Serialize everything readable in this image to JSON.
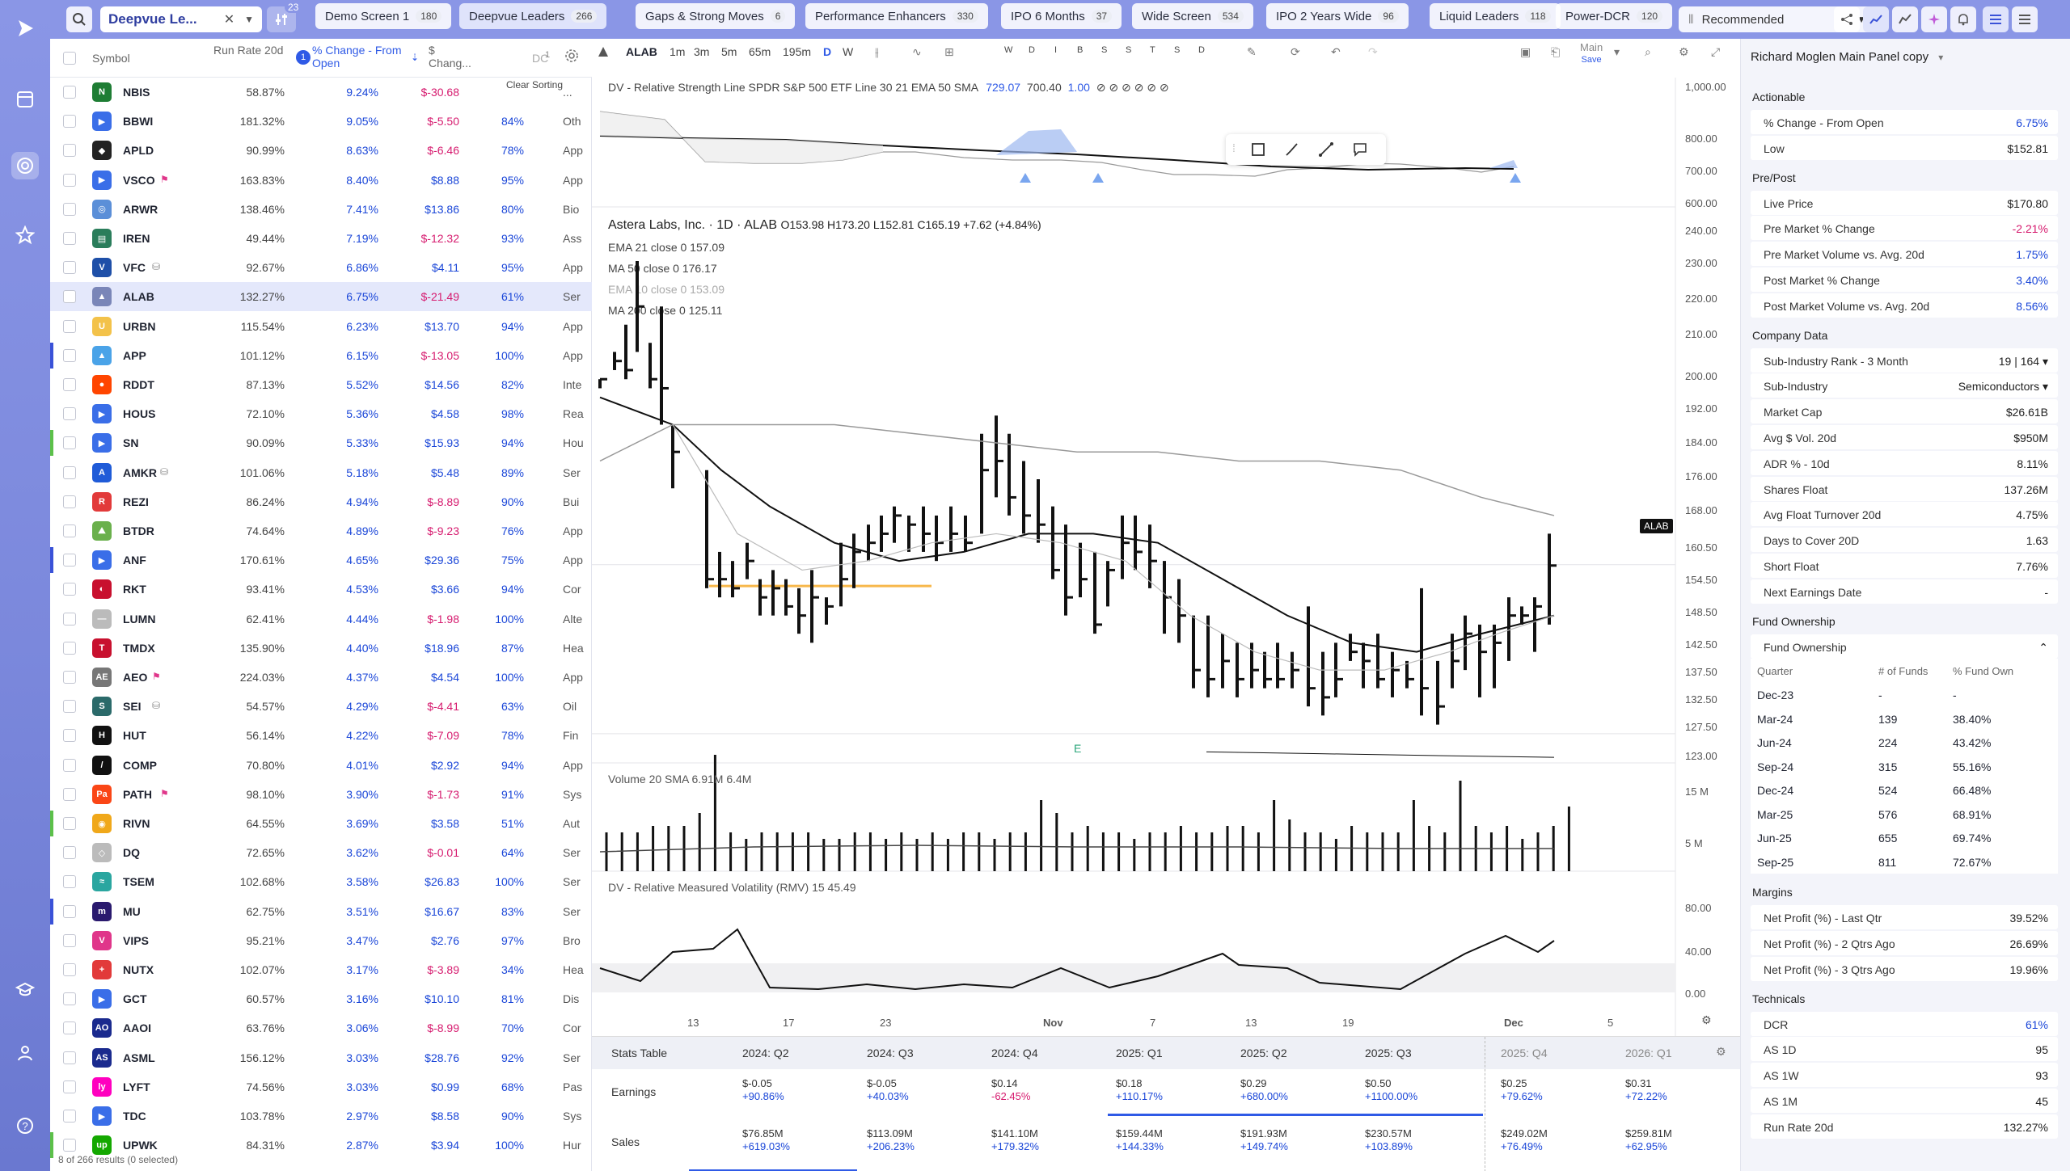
{
  "colors": {
    "accent": "#8a96e6",
    "positive": "#1a46d8",
    "negative": "#d61a6e",
    "selected_row": "#e4e8fb"
  },
  "topbar": {
    "screen_name": "Deepvue Le...",
    "filter_count": "23",
    "tabs": [
      {
        "label": "Demo Screen 1",
        "count": "180"
      },
      {
        "label": "Deepvue Leaders",
        "count": "266"
      },
      {
        "label": "Gaps & Strong Moves",
        "count": "6"
      },
      {
        "label": "Performance Enhancers",
        "count": "330"
      },
      {
        "label": "IPO 6 Months",
        "count": "37"
      },
      {
        "label": "Wide Screen",
        "count": "534"
      },
      {
        "label": "IPO 2 Years Wide",
        "count": "96"
      },
      {
        "label": "Liquid Leaders",
        "count": "118"
      },
      {
        "label": "Power-DCR",
        "count": "120"
      }
    ],
    "layout_select": "Recommended"
  },
  "watchlist": {
    "headers": {
      "symbol": "Symbol",
      "run_rate": "Run Rate 20d",
      "sort_badge": "1",
      "pct_change": "% Change - From Open",
      "dollar_change": "$ Chang...",
      "dcr": "DC",
      "dcr_badge": "1",
      "clear_sorting": "Clear Sorting"
    },
    "footer": "8 of 266 results (0 selected)",
    "rows": [
      {
        "sym": "NBIS",
        "rr": "58.87%",
        "pct": "9.24%",
        "chg": "$-30.68",
        "dcr": "",
        "ind": "...",
        "logo": "N",
        "logo_color": "#1e7d34",
        "marker": ""
      },
      {
        "sym": "BBWI",
        "rr": "181.32%",
        "pct": "9.05%",
        "chg": "$-5.50",
        "dcr": "84%",
        "ind": "Oth",
        "logo": "▶",
        "logo_color": "#3a6ee8",
        "marker": ""
      },
      {
        "sym": "APLD",
        "rr": "90.99%",
        "pct": "8.63%",
        "chg": "$-6.46",
        "dcr": "78%",
        "ind": "App",
        "logo": "◆",
        "logo_color": "#222",
        "marker": ""
      },
      {
        "sym": "VSCO",
        "rr": "163.83%",
        "pct": "8.40%",
        "chg": "$8.88",
        "dcr": "95%",
        "ind": "App",
        "logo": "▶",
        "logo_color": "#3a6ee8",
        "marker": "",
        "flag": "⚑"
      },
      {
        "sym": "ARWR",
        "rr": "138.46%",
        "pct": "7.41%",
        "chg": "$13.86",
        "dcr": "80%",
        "ind": "Bio",
        "logo": "◎",
        "logo_color": "#5b8fd8",
        "marker": ""
      },
      {
        "sym": "IREN",
        "rr": "49.44%",
        "pct": "7.19%",
        "chg": "$-12.32",
        "dcr": "93%",
        "ind": "Ass",
        "logo": "▤",
        "logo_color": "#2a7d5b",
        "marker": ""
      },
      {
        "sym": "VFC",
        "rr": "92.67%",
        "pct": "6.86%",
        "chg": "$4.11",
        "dcr": "95%",
        "ind": "App",
        "logo": "V",
        "logo_color": "#1e4fa8",
        "marker": "",
        "flag": "⛁"
      },
      {
        "sym": "ALAB",
        "rr": "132.27%",
        "pct": "6.75%",
        "chg": "$-21.49",
        "dcr": "61%",
        "ind": "Ser",
        "logo": "▲",
        "logo_color": "#7a86b8",
        "marker": "",
        "selected": true
      },
      {
        "sym": "URBN",
        "rr": "115.54%",
        "pct": "6.23%",
        "chg": "$13.70",
        "dcr": "94%",
        "ind": "App",
        "logo": "U",
        "logo_color": "#f3c24a",
        "marker": ""
      },
      {
        "sym": "APP",
        "rr": "101.12%",
        "pct": "6.15%",
        "chg": "$-13.05",
        "dcr": "100%",
        "ind": "App",
        "logo": "▲",
        "logo_color": "#4aa3e8",
        "marker": "#3a52d8"
      },
      {
        "sym": "RDDT",
        "rr": "87.13%",
        "pct": "5.52%",
        "chg": "$14.56",
        "dcr": "82%",
        "ind": "Inte",
        "logo": "●",
        "logo_color": "#ff4500",
        "marker": ""
      },
      {
        "sym": "HOUS",
        "rr": "72.10%",
        "pct": "5.36%",
        "chg": "$4.58",
        "dcr": "98%",
        "ind": "Rea",
        "logo": "▶",
        "logo_color": "#3a6ee8",
        "marker": ""
      },
      {
        "sym": "SN",
        "rr": "90.09%",
        "pct": "5.33%",
        "chg": "$15.93",
        "dcr": "94%",
        "ind": "Hou",
        "logo": "▶",
        "logo_color": "#3a6ee8",
        "marker": "#5cc04a"
      },
      {
        "sym": "AMKR",
        "rr": "101.06%",
        "pct": "5.18%",
        "chg": "$5.48",
        "dcr": "89%",
        "ind": "Ser",
        "logo": "A",
        "logo_color": "#1f5bd8",
        "marker": "",
        "flag": "⛁"
      },
      {
        "sym": "REZI",
        "rr": "86.24%",
        "pct": "4.94%",
        "chg": "$-8.89",
        "dcr": "90%",
        "ind": "Bui",
        "logo": "R",
        "logo_color": "#e23a3a",
        "marker": ""
      },
      {
        "sym": "BTDR",
        "rr": "74.64%",
        "pct": "4.89%",
        "chg": "$-9.23",
        "dcr": "76%",
        "ind": "App",
        "logo": "⛰",
        "logo_color": "#6ab04c",
        "marker": ""
      },
      {
        "sym": "ANF",
        "rr": "170.61%",
        "pct": "4.65%",
        "chg": "$29.36",
        "dcr": "75%",
        "ind": "App",
        "logo": "▶",
        "logo_color": "#3a6ee8",
        "marker": "#3a52d8"
      },
      {
        "sym": "RKT",
        "rr": "93.41%",
        "pct": "4.53%",
        "chg": "$3.66",
        "dcr": "94%",
        "ind": "Cor",
        "logo": "◐",
        "logo_color": "#c8102e",
        "marker": ""
      },
      {
        "sym": "LUMN",
        "rr": "62.41%",
        "pct": "4.44%",
        "chg": "$-1.98",
        "dcr": "100%",
        "ind": "Alte",
        "logo": "—",
        "logo_color": "#bbbbbb",
        "marker": ""
      },
      {
        "sym": "TMDX",
        "rr": "135.90%",
        "pct": "4.40%",
        "chg": "$18.96",
        "dcr": "87%",
        "ind": "Hea",
        "logo": "T",
        "logo_color": "#c8102e",
        "marker": ""
      },
      {
        "sym": "AEO",
        "rr": "224.03%",
        "pct": "4.37%",
        "chg": "$4.54",
        "dcr": "100%",
        "ind": "App",
        "logo": "AE",
        "logo_color": "#777777",
        "marker": "",
        "flag": "⚑"
      },
      {
        "sym": "SEI",
        "rr": "54.57%",
        "pct": "4.29%",
        "chg": "$-4.41",
        "dcr": "63%",
        "ind": "Oil",
        "logo": "S",
        "logo_color": "#2b6a6a",
        "marker": "",
        "flag": "⛁"
      },
      {
        "sym": "HUT",
        "rr": "56.14%",
        "pct": "4.22%",
        "chg": "$-7.09",
        "dcr": "78%",
        "ind": "Fin",
        "logo": "H",
        "logo_color": "#111111",
        "marker": ""
      },
      {
        "sym": "COMP",
        "rr": "70.80%",
        "pct": "4.01%",
        "chg": "$2.92",
        "dcr": "94%",
        "ind": "App",
        "logo": "/",
        "logo_color": "#111111",
        "marker": ""
      },
      {
        "sym": "PATH",
        "rr": "98.10%",
        "pct": "3.90%",
        "chg": "$-1.73",
        "dcr": "91%",
        "ind": "Sys",
        "logo": "Pa",
        "logo_color": "#fa4616",
        "marker": "",
        "flag": "⚑"
      },
      {
        "sym": "RIVN",
        "rr": "64.55%",
        "pct": "3.69%",
        "chg": "$3.58",
        "dcr": "51%",
        "ind": "Aut",
        "logo": "◉",
        "logo_color": "#f0a81a",
        "marker": "#5cc04a"
      },
      {
        "sym": "DQ",
        "rr": "72.65%",
        "pct": "3.62%",
        "chg": "$-0.01",
        "dcr": "64%",
        "ind": "Ser",
        "logo": "◇",
        "logo_color": "#bbbbbb",
        "marker": ""
      },
      {
        "sym": "TSEM",
        "rr": "102.68%",
        "pct": "3.58%",
        "chg": "$26.83",
        "dcr": "100%",
        "ind": "Ser",
        "logo": "≈",
        "logo_color": "#2aa6a0",
        "marker": ""
      },
      {
        "sym": "MU",
        "rr": "62.75%",
        "pct": "3.51%",
        "chg": "$16.67",
        "dcr": "83%",
        "ind": "Ser",
        "logo": "m",
        "logo_color": "#2a1a6e",
        "marker": "#3a52d8"
      },
      {
        "sym": "VIPS",
        "rr": "95.21%",
        "pct": "3.47%",
        "chg": "$2.76",
        "dcr": "97%",
        "ind": "Bro",
        "logo": "V",
        "logo_color": "#e0368a",
        "marker": ""
      },
      {
        "sym": "NUTX",
        "rr": "102.07%",
        "pct": "3.17%",
        "chg": "$-3.89",
        "dcr": "34%",
        "ind": "Hea",
        "logo": "+",
        "logo_color": "#e23a3a",
        "marker": ""
      },
      {
        "sym": "GCT",
        "rr": "60.57%",
        "pct": "3.16%",
        "chg": "$10.10",
        "dcr": "81%",
        "ind": "Dis",
        "logo": "▶",
        "logo_color": "#3a6ee8",
        "marker": ""
      },
      {
        "sym": "AAOI",
        "rr": "63.76%",
        "pct": "3.06%",
        "chg": "$-8.99",
        "dcr": "70%",
        "ind": "Cor",
        "logo": "AO",
        "logo_color": "#1a2a8e",
        "marker": ""
      },
      {
        "sym": "ASML",
        "rr": "156.12%",
        "pct": "3.03%",
        "chg": "$28.76",
        "dcr": "92%",
        "ind": "Ser",
        "logo": "AS",
        "logo_color": "#1a2a8e",
        "marker": ""
      },
      {
        "sym": "LYFT",
        "rr": "74.56%",
        "pct": "3.03%",
        "chg": "$0.99",
        "dcr": "68%",
        "ind": "Pas",
        "logo": "ly",
        "logo_color": "#ff00bf",
        "marker": ""
      },
      {
        "sym": "TDC",
        "rr": "103.78%",
        "pct": "2.97%",
        "chg": "$8.58",
        "dcr": "90%",
        "ind": "Sys",
        "logo": "▶",
        "logo_color": "#3a6ee8",
        "marker": ""
      },
      {
        "sym": "UPWK",
        "rr": "84.31%",
        "pct": "2.87%",
        "chg": "$3.94",
        "dcr": "100%",
        "ind": "Hur",
        "logo": "up",
        "logo_color": "#14a800",
        "marker": "#5cc04a"
      }
    ]
  },
  "chart": {
    "symbol": "ALAB",
    "intervals": [
      "1m",
      "3m",
      "5m",
      "65m",
      "195m",
      "D",
      "W"
    ],
    "range_buttons": [
      "W",
      "D",
      "I",
      "B",
      "S",
      "S",
      "T",
      "S",
      "D"
    ],
    "layout_name": "Main",
    "layout_sub": "Save",
    "rs_legend": "DV - Relative Strength Line  SPDR S&P 500 ETF Line 30 21 EMA 50 SMA",
    "rs_values": [
      "729.07",
      "700.40",
      "1.00",
      "⊘ ⊘ ⊘ ⊘ ⊘ ⊘"
    ],
    "title": "Astera Labs, Inc. · 1D · ALAB",
    "ohlc": "O153.98  H173.20  L152.81  C165.19  +7.62 (+4.84%)",
    "ma_lines": [
      {
        "label": "EMA 21 close 0",
        "value": "157.09",
        "dim": false
      },
      {
        "label": "MA 50 close 0",
        "value": "176.17",
        "dim": false
      },
      {
        "label": "EMA 10 close 0",
        "value": "153.09",
        "dim": true
      },
      {
        "label": "MA 200 close 0",
        "value": "125.11",
        "dim": false
      }
    ],
    "price_badge": "ALAB",
    "price_axis": [
      "240.00",
      "230.00",
      "220.00",
      "210.00",
      "200.00",
      "192.00",
      "184.00",
      "176.00",
      "168.00",
      "160.50",
      "154.50",
      "148.50",
      "142.50",
      "137.50",
      "132.50",
      "127.50",
      "123.00"
    ],
    "rs_axis": [
      "1,000.00",
      "800.00",
      "700.00",
      "600.00"
    ],
    "volume_legend": "Volume 20 SMA",
    "volume_values": "6.91M  6.4M",
    "volume_axis": [
      "15 M",
      "5 M"
    ],
    "rmv_legend": "DV - Relative Measured Volatility (RMV)  15",
    "rmv_value": "45.49",
    "rmv_axis": [
      "80.00",
      "40.00",
      "0.00"
    ],
    "earnings_marker": "E",
    "x_labels": [
      "13",
      "17",
      "23",
      "Nov",
      "7",
      "13",
      "19",
      "Dec",
      "5"
    ]
  },
  "stats_table": {
    "title": "Stats Table",
    "quarters": [
      "2024: Q2",
      "2024: Q3",
      "2024: Q4",
      "2025: Q1",
      "2025: Q2",
      "2025: Q3",
      "2025: Q4",
      "2026: Q1"
    ],
    "earnings_label": "Earnings",
    "sales_label": "Sales",
    "earnings": [
      {
        "v": "$-0.05",
        "g": "+90.86%",
        "s": "pos"
      },
      {
        "v": "$-0.05",
        "g": "+40.03%",
        "s": "pos"
      },
      {
        "v": "$0.14",
        "g": "-62.45%",
        "s": "neg"
      },
      {
        "v": "$0.18",
        "g": "+110.17%",
        "s": "pos"
      },
      {
        "v": "$0.29",
        "g": "+680.00%",
        "s": "pos"
      },
      {
        "v": "$0.50",
        "g": "+1100.00%",
        "s": "pos"
      },
      {
        "v": "$0.25",
        "g": "+79.62%",
        "s": "pos"
      },
      {
        "v": "$0.31",
        "g": "+72.22%",
        "s": "pos"
      }
    ],
    "sales": [
      {
        "v": "$76.85M",
        "g": "+619.03%"
      },
      {
        "v": "$113.09M",
        "g": "+206.23%"
      },
      {
        "v": "$141.10M",
        "g": "+179.32%"
      },
      {
        "v": "$159.44M",
        "g": "+144.33%"
      },
      {
        "v": "$191.93M",
        "g": "+149.74%"
      },
      {
        "v": "$230.57M",
        "g": "+103.89%"
      },
      {
        "v": "$249.02M",
        "g": "+76.49%"
      },
      {
        "v": "$259.81M",
        "g": "+62.95%"
      }
    ]
  },
  "right_panel": {
    "title": "Richard Moglen Main Panel copy",
    "actionable": {
      "header": "Actionable",
      "rows": [
        [
          "% Change - From Open",
          "6.75%",
          "blue"
        ],
        [
          "Low",
          "$152.81",
          ""
        ]
      ]
    },
    "prepost": {
      "header": "Pre/Post",
      "rows": [
        [
          "Live Price",
          "$170.80",
          ""
        ],
        [
          "Pre Market % Change",
          "-2.21%",
          "pink"
        ],
        [
          "Pre Market Volume vs. Avg. 20d",
          "1.75%",
          "blue"
        ],
        [
          "Post Market % Change",
          "3.40%",
          "blue"
        ],
        [
          "Post Market Volume vs. Avg. 20d",
          "8.56%",
          "blue"
        ]
      ]
    },
    "company": {
      "header": "Company Data",
      "rows": [
        [
          "Sub-Industry Rank - 3 Month",
          "19 | 164 ▾",
          ""
        ],
        [
          "Sub-Industry",
          "Semiconductors ▾",
          ""
        ],
        [
          "Market Cap",
          "$26.61B",
          ""
        ],
        [
          "Avg $ Vol. 20d",
          "$950M",
          ""
        ],
        [
          "ADR % - 10d",
          "8.11%",
          ""
        ],
        [
          "Shares Float",
          "137.26M",
          ""
        ],
        [
          "Avg Float Turnover 20d",
          "4.75%",
          ""
        ],
        [
          "Days to Cover 20D",
          "1.63",
          ""
        ],
        [
          "Short Float",
          "7.76%",
          ""
        ],
        [
          "Next Earnings Date",
          "-",
          ""
        ]
      ]
    },
    "fund": {
      "header": "Fund Ownership",
      "sub_header": "Fund Ownership",
      "cols": [
        "Quarter",
        "# of Funds",
        "% Fund Own"
      ],
      "rows": [
        [
          "Dec-23",
          "-",
          "-"
        ],
        [
          "Mar-24",
          "139",
          "38.40%"
        ],
        [
          "Jun-24",
          "224",
          "43.42%"
        ],
        [
          "Sep-24",
          "315",
          "55.16%"
        ],
        [
          "Dec-24",
          "524",
          "66.48%"
        ],
        [
          "Mar-25",
          "576",
          "68.91%"
        ],
        [
          "Jun-25",
          "655",
          "69.74%"
        ],
        [
          "Sep-25",
          "811",
          "72.67%"
        ]
      ]
    },
    "margins": {
      "header": "Margins",
      "rows": [
        [
          "Net Profit (%) - Last Qtr",
          "39.52%",
          ""
        ],
        [
          "Net Profit (%) - 2 Qtrs Ago",
          "26.69%",
          ""
        ],
        [
          "Net Profit (%) - 3 Qtrs Ago",
          "19.96%",
          ""
        ]
      ]
    },
    "technicals": {
      "header": "Technicals",
      "rows": [
        [
          "DCR",
          "61%",
          "blue"
        ],
        [
          "AS 1D",
          "95",
          ""
        ],
        [
          "AS 1W",
          "93",
          ""
        ],
        [
          "AS 1M",
          "45",
          ""
        ],
        [
          "Run Rate 20d",
          "132.27%",
          ""
        ]
      ]
    }
  }
}
